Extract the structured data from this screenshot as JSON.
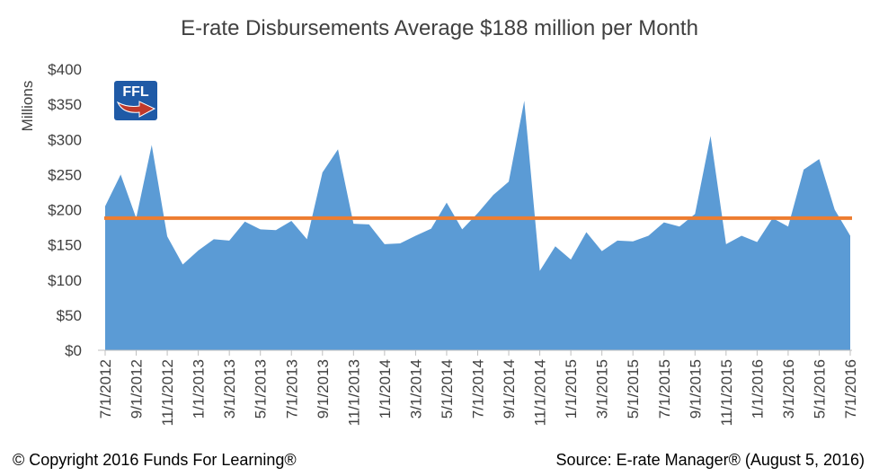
{
  "title": "E-rate Disbursements Average $188 million per Month",
  "footer": {
    "copyright": "© Copyright 2016 Funds For Learning®",
    "source": "Source: E-rate Manager® (August 5, 2016)"
  },
  "logo": {
    "text": "FFL",
    "icon": "ffl-arrow-logo",
    "bg_color": "#1f5aa6",
    "arrow_color": "#c0392b"
  },
  "colors": {
    "area": "#5b9bd5",
    "average_line": "#ed7d31",
    "axis": "#bfbfbf"
  },
  "chart_data": {
    "type": "area",
    "title": "E-rate Disbursements Average $188 million per Month",
    "ylabel": "Millions",
    "xlabel": "",
    "ylim": [
      0,
      400
    ],
    "y_ticks": [
      "$0",
      "$50",
      "$100",
      "$150",
      "$200",
      "$250",
      "$300",
      "$350",
      "$400"
    ],
    "x_tick_labels": [
      "7/1/2012",
      "9/1/2012",
      "11/1/2012",
      "1/1/2013",
      "3/1/2013",
      "5/1/2013",
      "7/1/2013",
      "9/1/2013",
      "11/1/2013",
      "1/1/2014",
      "3/1/2014",
      "5/1/2014",
      "7/1/2014",
      "9/1/2014",
      "11/1/2014",
      "1/1/2015",
      "3/1/2015",
      "5/1/2015",
      "7/1/2015",
      "9/1/2015",
      "11/1/2015",
      "1/1/2016",
      "3/1/2016",
      "5/1/2016",
      "7/1/2016"
    ],
    "months": [
      "7/1/2012",
      "8/1/2012",
      "9/1/2012",
      "10/1/2012",
      "11/1/2012",
      "12/1/2012",
      "1/1/2013",
      "2/1/2013",
      "3/1/2013",
      "4/1/2013",
      "5/1/2013",
      "6/1/2013",
      "7/1/2013",
      "8/1/2013",
      "9/1/2013",
      "10/1/2013",
      "11/1/2013",
      "12/1/2013",
      "1/1/2014",
      "2/1/2014",
      "3/1/2014",
      "4/1/2014",
      "5/1/2014",
      "6/1/2014",
      "7/1/2014",
      "8/1/2014",
      "9/1/2014",
      "10/1/2014",
      "11/1/2014",
      "12/1/2014",
      "1/1/2015",
      "2/1/2015",
      "3/1/2015",
      "4/1/2015",
      "5/1/2015",
      "6/1/2015",
      "7/1/2015",
      "8/1/2015",
      "9/1/2015",
      "10/1/2015",
      "11/1/2015",
      "12/1/2015",
      "1/1/2016",
      "2/1/2016",
      "3/1/2016",
      "4/1/2016",
      "5/1/2016",
      "6/1/2016",
      "7/1/2016"
    ],
    "series": [
      {
        "values": [
          205,
          250,
          188,
          292,
          162,
          122,
          142,
          158,
          156,
          183,
          172,
          171,
          184,
          158,
          253,
          286,
          180,
          179,
          151,
          152,
          163,
          173,
          210,
          172,
          195,
          221,
          240,
          355,
          113,
          148,
          129,
          168,
          141,
          156,
          155,
          163,
          182,
          176,
          194,
          305,
          151,
          163,
          154,
          188,
          176,
          257,
          272,
          200,
          163
        ]
      }
    ],
    "average": 188,
    "grid": false,
    "legend": "none"
  }
}
